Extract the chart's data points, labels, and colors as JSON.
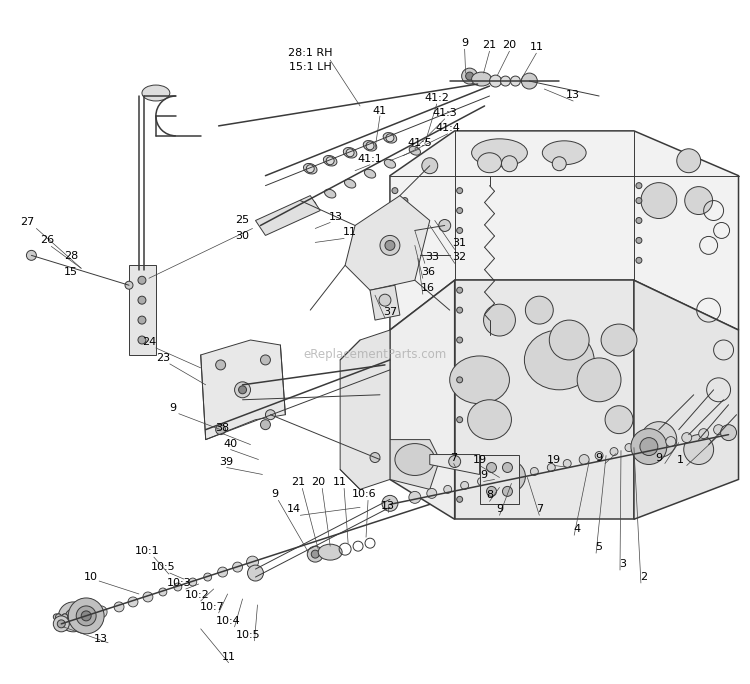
{
  "bg_color": "#ffffff",
  "line_color": "#3a3a3a",
  "text_color": "#000000",
  "watermark": "eReplacementParts.com",
  "lw": 0.7,
  "lw_thick": 1.1
}
